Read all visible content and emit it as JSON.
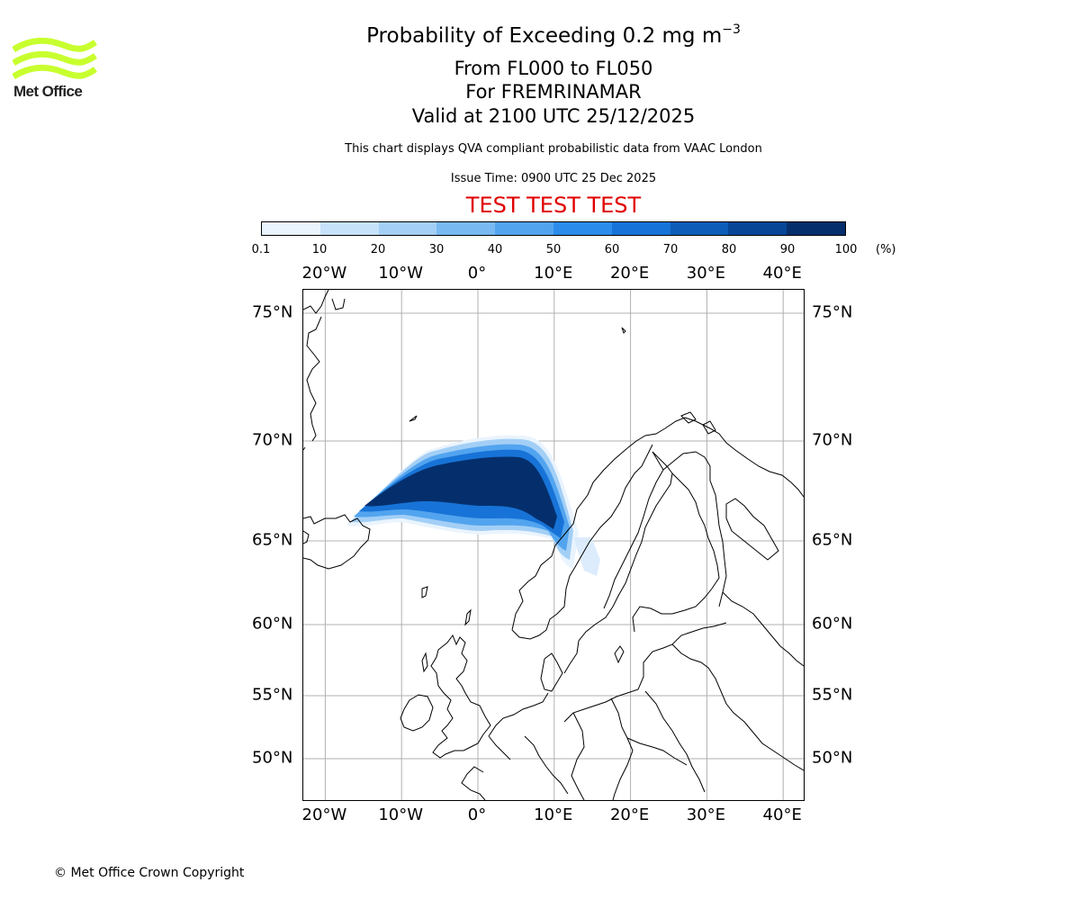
{
  "logo": {
    "text": "Met Office",
    "color": "#c8ff2e"
  },
  "title": {
    "main": "Probability of Exceeding 0.2 mg m",
    "main_superscript": "−3",
    "levels": "From FL000 to FL050",
    "location": "For FREMRINAMAR",
    "valid": "Valid at 2100 UTC 25/12/2025",
    "description": "This chart displays QVA compliant probabilistic data from VAAC London",
    "issue_time": "Issue Time: 0900 UTC 25 Dec 2025",
    "test_banner": "TEST TEST TEST",
    "test_color": "#e00000"
  },
  "colorbar": {
    "ticks": [
      "0.1",
      "10",
      "20",
      "30",
      "40",
      "50",
      "60",
      "70",
      "80",
      "90",
      "100"
    ],
    "unit": "(%)",
    "colors": [
      "#eaf4fe",
      "#c6e2fa",
      "#a3cff6",
      "#79b9f2",
      "#52a4ef",
      "#2c8ceb",
      "#1773d7",
      "#0c5cb8",
      "#074597",
      "#052f6c"
    ]
  },
  "map": {
    "lon_labels": [
      "20°W",
      "10°W",
      "0°",
      "10°E",
      "20°E",
      "30°E",
      "40°E"
    ],
    "lat_labels": [
      "75°N",
      "70°N",
      "65°N",
      "60°N",
      "55°N",
      "50°N"
    ],
    "lon_values": [
      -20,
      -10,
      0,
      10,
      20,
      30,
      40
    ],
    "lat_values": [
      75,
      70,
      65,
      60,
      55,
      50
    ],
    "extent": {
      "lon_min": -22.5,
      "lon_max": 43,
      "lat_min": 47.5,
      "lat_max": 76
    },
    "grid": true,
    "features": [
      "coastlines",
      "country-borders",
      "probability-plume"
    ]
  },
  "footer": {
    "copyright": "© Met Office Crown Copyright"
  }
}
